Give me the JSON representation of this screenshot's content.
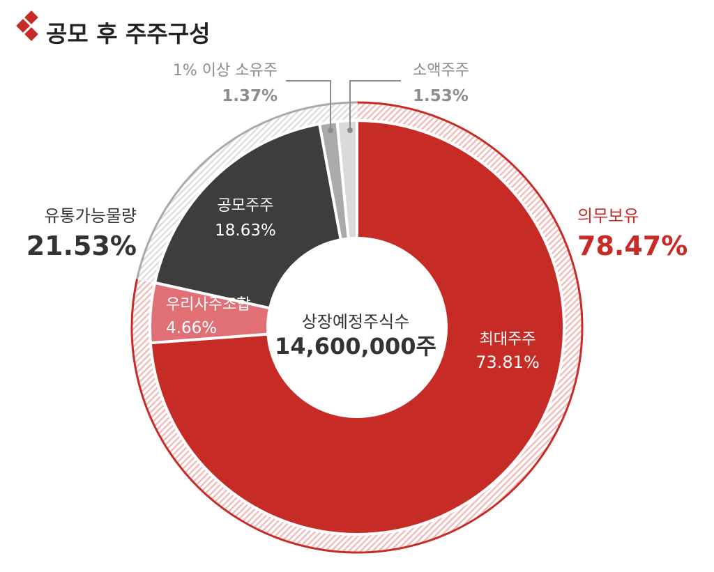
{
  "title": "공모 후 주주구성",
  "center": {
    "line1": "상장예정주식수",
    "line2": "14,600,000주"
  },
  "colors": {
    "red": "#C62B26",
    "pink": "#E07075",
    "dark": "#3D3D3F",
    "gray": "#AAAAAA",
    "light": "#DADADA",
    "ring_red_stripe": "#F2B9B9",
    "ring_gray_stripe": "#DDDDDD",
    "text_dark": "#333333",
    "text_gray": "#8C8C8C"
  },
  "chart_data": {
    "type": "donut",
    "title": "공모 후 주주구성",
    "inner": [
      {
        "name": "최대주주",
        "value": 73.81,
        "label": "최대주주",
        "value_label": "73.81%",
        "color": "#C62B26"
      },
      {
        "name": "우리사주조합",
        "value": 4.66,
        "label": "우리사주조합",
        "value_label": "4.66%",
        "color": "#E07075"
      },
      {
        "name": "공모주주",
        "value": 18.63,
        "label": "공모주주",
        "value_label": "18.63%",
        "color": "#3D3D3F"
      },
      {
        "name": "1% 이상 소유주",
        "value": 1.37,
        "label": "1% 이상 소유주",
        "value_label": "1.37%",
        "color": "#AAAAAA"
      },
      {
        "name": "소액주주",
        "value": 1.53,
        "label": "소액주주",
        "value_label": "1.53%",
        "color": "#DADADA"
      }
    ],
    "outer": [
      {
        "name": "의무보유",
        "value": 78.47,
        "label": "의무보유",
        "value_label": "78.47%"
      },
      {
        "name": "유통가능물량",
        "value": 21.53,
        "label": "유통가능물량",
        "value_label": "21.53%"
      }
    ]
  }
}
